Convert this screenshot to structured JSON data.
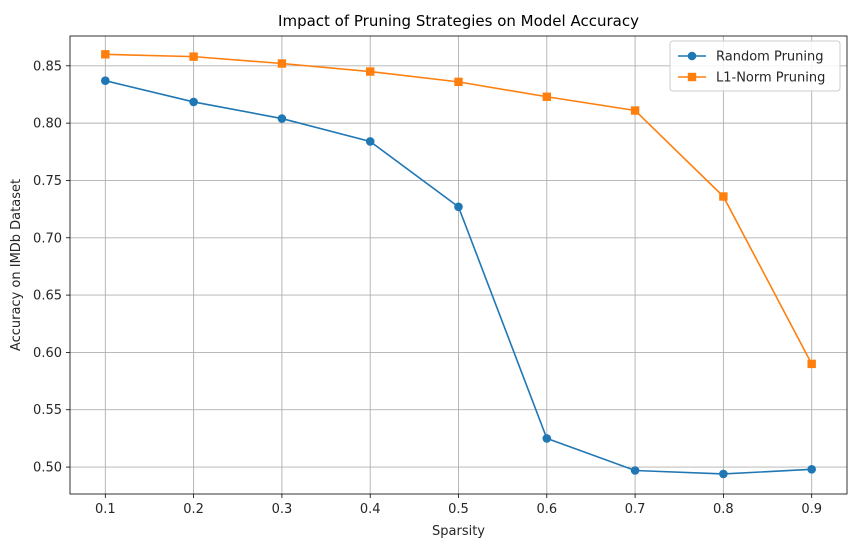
{
  "chart_data": {
    "type": "line",
    "title": "Impact of Pruning Strategies on Model Accuracy",
    "xlabel": "Sparsity",
    "ylabel": "Accuracy on IMDb Dataset",
    "x": [
      0.1,
      0.2,
      0.3,
      0.4,
      0.5,
      0.6,
      0.7,
      0.8,
      0.9
    ],
    "x_tick_labels": [
      "0.1",
      "0.2",
      "0.3",
      "0.4",
      "0.5",
      "0.6",
      "0.7",
      "0.8",
      "0.9"
    ],
    "y_ticks": [
      0.5,
      0.55,
      0.6,
      0.65,
      0.7,
      0.75,
      0.8,
      0.85
    ],
    "y_tick_labels": [
      "0.50",
      "0.55",
      "0.60",
      "0.65",
      "0.70",
      "0.75",
      "0.80",
      "0.85"
    ],
    "xlim": [
      0.06,
      0.94
    ],
    "ylim": [
      0.4765,
      0.876
    ],
    "grid": true,
    "legend_position": "top-right",
    "series": [
      {
        "name": "Random Pruning",
        "marker": "circle",
        "color": "#1f77b4",
        "values": [
          0.837,
          0.8185,
          0.804,
          0.784,
          0.727,
          0.525,
          0.497,
          0.494,
          0.498
        ]
      },
      {
        "name": "L1-Norm Pruning",
        "marker": "square",
        "color": "#ff7f0e",
        "values": [
          0.86,
          0.858,
          0.852,
          0.845,
          0.836,
          0.823,
          0.811,
          0.736,
          0.59
        ]
      }
    ]
  }
}
